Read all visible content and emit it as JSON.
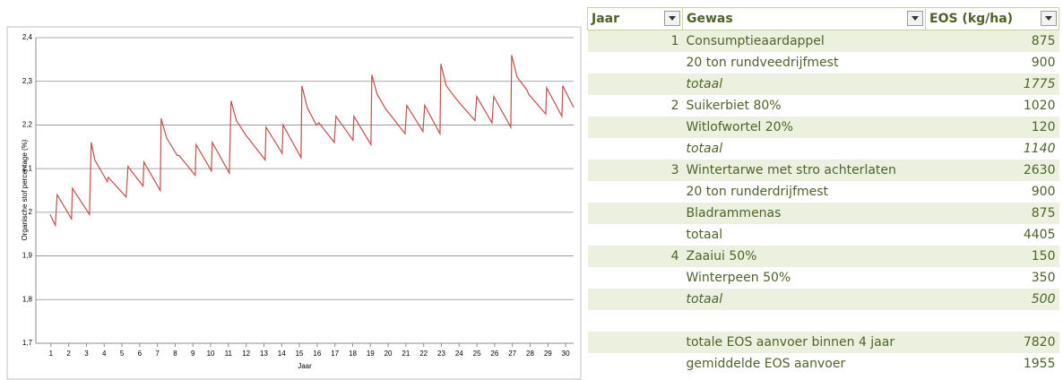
{
  "chart_data": {
    "type": "line",
    "xlabel": "Jaar",
    "ylabel": "Organische stof percentage (%)",
    "x": [
      0.95,
      1.25,
      1.35,
      2.16,
      2.21,
      3.17,
      3.27,
      3.47,
      4.18,
      4.23,
      5.24,
      5.34,
      6.19,
      6.24,
      7.16,
      7.21,
      7.52,
      8.12,
      8.22,
      9.13,
      9.18,
      10.04,
      10.09,
      11.05,
      11.15,
      11.45,
      12.01,
      12.11,
      13.07,
      13.12,
      14.03,
      14.08,
      15.09,
      15.14,
      15.44,
      15.95,
      16.1,
      16.96,
      17.06,
      18.02,
      18.07,
      19.03,
      19.08,
      19.38,
      19.89,
      19.99,
      20.95,
      21.05,
      21.96,
      22.06,
      22.92,
      22.97,
      23.27,
      23.83,
      23.93,
      24.89,
      24.99,
      25.85,
      25.95,
      26.91,
      26.96,
      27.26,
      27.82,
      27.92,
      28.88,
      28.93,
      29.79,
      29.84,
      30.45
    ],
    "values": [
      1.995,
      1.97,
      2.04,
      1.985,
      2.055,
      1.995,
      2.16,
      2.12,
      2.07,
      2.08,
      2.035,
      2.105,
      2.06,
      2.115,
      2.05,
      2.215,
      2.17,
      2.13,
      2.13,
      2.085,
      2.155,
      2.095,
      2.16,
      2.09,
      2.255,
      2.21,
      2.175,
      2.17,
      2.12,
      2.195,
      2.135,
      2.2,
      2.125,
      2.29,
      2.24,
      2.2,
      2.205,
      2.16,
      2.22,
      2.165,
      2.22,
      2.155,
      2.315,
      2.27,
      2.235,
      2.23,
      2.18,
      2.245,
      2.185,
      2.245,
      2.18,
      2.34,
      2.29,
      2.26,
      2.255,
      2.21,
      2.265,
      2.205,
      2.265,
      2.195,
      2.36,
      2.31,
      2.28,
      2.27,
      2.225,
      2.285,
      2.22,
      2.29,
      2.24
    ],
    "color": "#c0504d",
    "xlim": [
      0.15,
      30.45
    ],
    "xticks": [
      1,
      2,
      3,
      4,
      5,
      6,
      7,
      8,
      9,
      10,
      11,
      12,
      13,
      14,
      15,
      16,
      17,
      18,
      19,
      20,
      21,
      22,
      23,
      24,
      25,
      26,
      27,
      28,
      29,
      30
    ],
    "ylim": [
      1.7,
      2.4
    ],
    "yticks": [
      {
        "value": 1.7,
        "label": "1,7"
      },
      {
        "value": 1.8,
        "label": "1,8"
      },
      {
        "value": 1.9,
        "label": "1,9"
      },
      2,
      {
        "value": 2.1,
        "label": "2,1"
      },
      {
        "value": 2.2,
        "label": "2,2"
      },
      {
        "value": 2.3,
        "label": "2,3"
      },
      {
        "value": 2.4,
        "label": "2,4"
      }
    ],
    "grid": true
  },
  "table": {
    "header": {
      "jaar": "Jaar",
      "gewas": "Gewas",
      "eos": "EOS (kg/ha)"
    },
    "rows": [
      {
        "jaar": 1,
        "gewas": "Consumptieaardappel",
        "eos": 875
      },
      {
        "gewas": "20 ton rundveedrijfmest",
        "eos": 900
      },
      {
        "gewas": "totaal",
        "eos": 1775,
        "italic": true
      },
      {
        "jaar": 2,
        "gewas": "Suikerbiet 80%",
        "eos": 1020
      },
      {
        "gewas": "Witlofwortel 20%",
        "eos": 120
      },
      {
        "gewas": "totaal",
        "eos": 1140,
        "italic": true
      },
      {
        "jaar": 3,
        "gewas": "Wintertarwe met stro achterlaten",
        "eos": 2630
      },
      {
        "gewas": "20 ton runderdrijfmest",
        "eos": 900
      },
      {
        "gewas": "Bladrammenas",
        "eos": 875
      },
      {
        "gewas": "totaal",
        "eos": 4405
      },
      {
        "jaar": 4,
        "gewas": "Zaaiui 50%",
        "eos": 150
      },
      {
        "gewas": "Winterpeen 50%",
        "eos": 350
      },
      {
        "gewas": "totaal",
        "eos": 500,
        "italic": true
      },
      {},
      {
        "gewas": "totale EOS aanvoer binnen 4 jaar",
        "eos": 7820
      },
      {
        "gewas": "gemiddelde EOS aanvoer",
        "eos": 1955
      }
    ]
  }
}
